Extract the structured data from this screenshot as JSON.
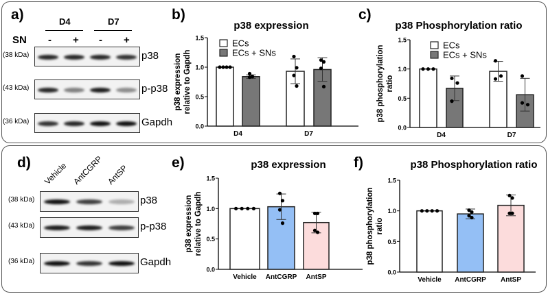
{
  "top": {
    "letters": [
      "a)",
      "b)",
      "c)"
    ],
    "blot": {
      "groups": [
        "D4",
        "D7"
      ],
      "row_label": "SN",
      "signs": [
        "-",
        "+",
        "-",
        "+"
      ],
      "rows": [
        {
          "kda": "(38 kDa)",
          "name": "p38",
          "intensity": [
            0.9,
            0.9,
            0.9,
            0.85
          ]
        },
        {
          "kda": "(43 kDa)",
          "name": "p-p38",
          "intensity": [
            0.9,
            0.5,
            0.95,
            0.45
          ]
        },
        {
          "kda": "(36 kDa)",
          "name": "Gapdh",
          "intensity": [
            0.85,
            0.9,
            1.0,
            1.0
          ]
        }
      ]
    }
  },
  "bottom": {
    "letters": [
      "d)",
      "e)",
      "f)"
    ],
    "blot": {
      "lanes": [
        "Vehicle",
        "AntCGRP",
        "AntSP"
      ],
      "rows": [
        {
          "kda": "(38 kDa)",
          "name": "p38",
          "intensity": [
            1.0,
            0.8,
            0.3
          ]
        },
        {
          "kda": "(43 kDa)",
          "name": "p-p38",
          "intensity": [
            0.95,
            0.95,
            0.8
          ]
        },
        {
          "kda": "(36 kDa)",
          "name": "Gapdh",
          "intensity": [
            1.0,
            0.85,
            1.0
          ]
        }
      ]
    }
  },
  "chart_data": [
    {
      "id": "b",
      "type": "bar",
      "title": "p38 expression",
      "ylabel": [
        "p38 expression",
        "relative to Gapdh"
      ],
      "categories": [
        "D4",
        "D7"
      ],
      "ylim": [
        0,
        1.5
      ],
      "y_ticks": [
        "0.0",
        "0.5",
        "1.0",
        "1.5"
      ],
      "legend": {
        "position": "top-left",
        "entries": [
          "ECs",
          "ECs + SNs"
        ]
      },
      "series": [
        {
          "name": "ECs",
          "color": "#ffffff",
          "values": [
            1.0,
            0.93
          ],
          "sd": [
            0,
            0.21
          ],
          "points": [
            [
              1,
              1,
              1,
              1
            ],
            [
              1.18,
              0.99,
              0.86,
              0.68
            ]
          ]
        },
        {
          "name": "ECs + SNs",
          "color": "#777777",
          "values": [
            0.84,
            0.96
          ],
          "sd": [
            0.03,
            0.2
          ],
          "points": [
            [
              0.89,
              0.84,
              0.83,
              0.84
            ],
            [
              1.12,
              1.09,
              0.98,
              0.67
            ]
          ]
        }
      ]
    },
    {
      "id": "c",
      "type": "bar",
      "title": "p38 Phosphorylation ratio",
      "ylabel": [
        "p38 phosphorylation",
        "ratio"
      ],
      "categories": [
        "D4",
        "D7"
      ],
      "ylim": [
        0,
        1.5
      ],
      "y_ticks": [
        "0.0",
        "0.5",
        "1.0",
        "1.5"
      ],
      "legend": {
        "position": "top-left",
        "entries": [
          "ECs",
          "ECs + SNs"
        ]
      },
      "series": [
        {
          "name": "ECs",
          "color": "#ffffff",
          "values": [
            1.0,
            0.96
          ],
          "sd": [
            0,
            0.17
          ],
          "points": [
            [
              1,
              1,
              1
            ],
            [
              1.14,
              0.88,
              0.83
            ]
          ]
        },
        {
          "name": "ECs + SNs",
          "color": "#777777",
          "values": [
            0.67,
            0.56
          ],
          "sd": [
            0.21,
            0.28
          ],
          "points": [
            [
              0.84,
              0.76,
              0.45
            ],
            [
              0.88,
              0.39,
              0.42
            ]
          ]
        }
      ]
    },
    {
      "id": "e",
      "type": "bar",
      "title": "p38 expression",
      "ylabel": [
        "p38 expression",
        "relative to Gapdh"
      ],
      "categories": [
        "Vehicle",
        "AntCGRP",
        "AntSP"
      ],
      "ylim": [
        0,
        1.5
      ],
      "y_ticks": [
        "0.0",
        "0.5",
        "1.0",
        "1.5"
      ],
      "series": [
        {
          "name": "p38 expression",
          "colors": [
            "#ffffff",
            "#94bff5",
            "#fcdcdc"
          ],
          "values": [
            1.0,
            1.03,
            0.77
          ],
          "sd": [
            0,
            0.21,
            0.17
          ],
          "points": [
            [
              1,
              1,
              1,
              1
            ],
            [
              1.25,
              1.13,
              0.98,
              0.76
            ],
            [
              0.92,
              0.92,
              0.64,
              0.61
            ]
          ]
        }
      ]
    },
    {
      "id": "f",
      "type": "bar",
      "title": "p38 Phosphorylation ratio",
      "ylabel": [
        "p38 phosphorylation",
        "ratio"
      ],
      "categories": [
        "Vehicle",
        "AntCGRP",
        "AntSP"
      ],
      "ylim": [
        0,
        1.5
      ],
      "y_ticks": [
        "0.0",
        "0.5",
        "1.0",
        "1.5"
      ],
      "series": [
        {
          "name": "p38 phosphorylation ratio",
          "colors": [
            "#ffffff",
            "#94bff5",
            "#fcdcdc"
          ],
          "values": [
            1.0,
            0.95,
            1.09
          ],
          "sd": [
            0,
            0.08,
            0.17
          ],
          "points": [
            [
              1,
              1,
              1,
              1
            ],
            [
              1.01,
              0.98,
              0.92,
              0.89
            ],
            [
              1.25,
              1.21,
              0.96,
              0.96
            ]
          ]
        }
      ]
    }
  ]
}
